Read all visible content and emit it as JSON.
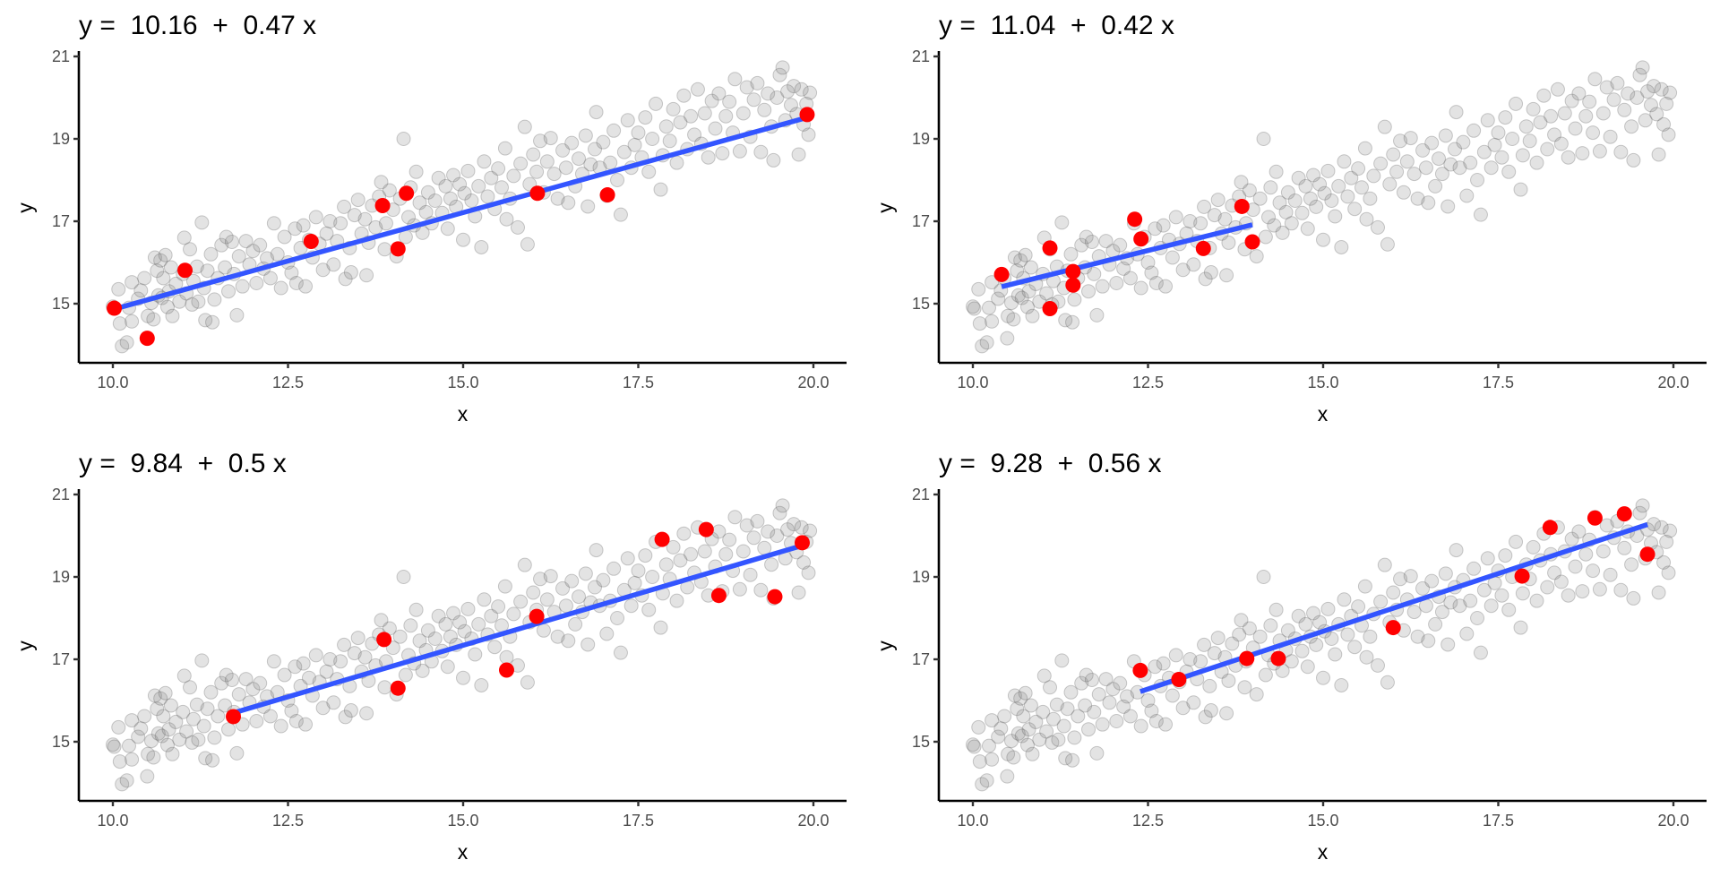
{
  "chart_data": {
    "type": "scatter",
    "layout": "2x2 grid of facets",
    "xlabel": "x",
    "ylabel": "y",
    "xlim": [
      9.5,
      20.5
    ],
    "ylim": [
      13.7,
      21.1
    ],
    "x_ticks": [
      10.0,
      12.5,
      15.0,
      17.5,
      20.0
    ],
    "x_tick_labels": [
      "10.0",
      "12.5",
      "15.0",
      "17.5",
      "20.0"
    ],
    "y_ticks": [
      15,
      17,
      19,
      21
    ],
    "y_tick_labels": [
      "15",
      "17",
      "19",
      "21"
    ],
    "grid": false,
    "colors": {
      "background_points": "#808080",
      "highlight_points": "#ff0000",
      "fit_line": "#3355ff"
    },
    "background_points": [
      [
        10.0,
        14.93
      ],
      [
        10.02,
        14.88
      ],
      [
        10.08,
        15.35
      ],
      [
        10.1,
        14.52
      ],
      [
        10.13,
        13.97
      ],
      [
        10.2,
        14.06
      ],
      [
        10.23,
        14.9
      ],
      [
        10.27,
        14.57
      ],
      [
        10.27,
        15.52
      ],
      [
        10.36,
        15.12
      ],
      [
        10.4,
        15.32
      ],
      [
        10.45,
        15.62
      ],
      [
        10.49,
        14.16
      ],
      [
        10.5,
        14.7
      ],
      [
        10.55,
        15.02
      ],
      [
        10.58,
        14.62
      ],
      [
        10.6,
        16.12
      ],
      [
        10.63,
        15.8
      ],
      [
        10.65,
        15.2
      ],
      [
        10.68,
        16.05
      ],
      [
        10.7,
        15.14
      ],
      [
        10.72,
        15.62
      ],
      [
        10.75,
        16.18
      ],
      [
        10.78,
        14.92
      ],
      [
        10.8,
        15.3
      ],
      [
        10.83,
        15.88
      ],
      [
        10.85,
        14.7
      ],
      [
        10.9,
        15.48
      ],
      [
        10.95,
        15.05
      ],
      [
        11.0,
        15.72
      ],
      [
        11.02,
        16.6
      ],
      [
        11.05,
        15.25
      ],
      [
        11.1,
        16.32
      ],
      [
        11.13,
        14.98
      ],
      [
        11.15,
        15.55
      ],
      [
        11.2,
        15.9
      ],
      [
        11.22,
        15.05
      ],
      [
        11.27,
        16.97
      ],
      [
        11.3,
        15.38
      ],
      [
        11.32,
        14.6
      ],
      [
        11.35,
        15.8
      ],
      [
        11.4,
        16.2
      ],
      [
        11.42,
        14.55
      ],
      [
        11.45,
        15.1
      ],
      [
        11.5,
        15.62
      ],
      [
        11.55,
        16.42
      ],
      [
        11.6,
        15.88
      ],
      [
        11.62,
        16.62
      ],
      [
        11.65,
        15.3
      ],
      [
        11.7,
        16.5
      ],
      [
        11.73,
        15.72
      ],
      [
        11.77,
        14.72
      ],
      [
        11.8,
        16.15
      ],
      [
        11.85,
        15.42
      ],
      [
        11.9,
        16.52
      ],
      [
        11.95,
        15.95
      ],
      [
        12.0,
        16.28
      ],
      [
        12.05,
        15.5
      ],
      [
        12.1,
        16.42
      ],
      [
        12.15,
        15.85
      ],
      [
        12.2,
        16.1
      ],
      [
        12.25,
        15.62
      ],
      [
        12.3,
        16.95
      ],
      [
        12.35,
        16.2
      ],
      [
        12.4,
        15.38
      ],
      [
        12.45,
        16.62
      ],
      [
        12.5,
        16.0
      ],
      [
        12.55,
        15.75
      ],
      [
        12.6,
        16.82
      ],
      [
        12.62,
        15.5
      ],
      [
        12.68,
        16.35
      ],
      [
        12.72,
        16.9
      ],
      [
        12.75,
        15.42
      ],
      [
        12.8,
        16.55
      ],
      [
        12.85,
        16.12
      ],
      [
        12.9,
        17.1
      ],
      [
        12.95,
        16.45
      ],
      [
        13.0,
        15.82
      ],
      [
        13.05,
        16.7
      ],
      [
        13.1,
        17.0
      ],
      [
        13.15,
        15.95
      ],
      [
        13.2,
        16.52
      ],
      [
        13.25,
        16.95
      ],
      [
        13.3,
        17.35
      ],
      [
        13.32,
        15.6
      ],
      [
        13.38,
        16.35
      ],
      [
        13.4,
        15.76
      ],
      [
        13.45,
        17.15
      ],
      [
        13.5,
        17.52
      ],
      [
        13.55,
        16.7
      ],
      [
        13.6,
        17.05
      ],
      [
        13.62,
        15.69
      ],
      [
        13.65,
        16.48
      ],
      [
        13.7,
        17.38
      ],
      [
        13.75,
        16.85
      ],
      [
        13.8,
        17.6
      ],
      [
        13.83,
        17.95
      ],
      [
        13.88,
        16.32
      ],
      [
        13.9,
        16.95
      ],
      [
        13.95,
        17.75
      ],
      [
        14.0,
        17.28
      ],
      [
        14.05,
        16.15
      ],
      [
        14.1,
        17.55
      ],
      [
        14.15,
        19.0
      ],
      [
        14.18,
        16.62
      ],
      [
        14.22,
        17.1
      ],
      [
        14.25,
        17.82
      ],
      [
        14.3,
        16.9
      ],
      [
        14.33,
        18.2
      ],
      [
        14.38,
        17.45
      ],
      [
        14.42,
        16.72
      ],
      [
        14.47,
        17.22
      ],
      [
        14.5,
        17.7
      ],
      [
        14.55,
        16.95
      ],
      [
        14.6,
        17.5
      ],
      [
        14.65,
        18.05
      ],
      [
        14.7,
        17.2
      ],
      [
        14.75,
        17.85
      ],
      [
        14.78,
        16.82
      ],
      [
        14.82,
        17.55
      ],
      [
        14.86,
        18.12
      ],
      [
        14.9,
        17.35
      ],
      [
        14.95,
        17.9
      ],
      [
        15.0,
        16.55
      ],
      [
        15.02,
        17.68
      ],
      [
        15.07,
        18.22
      ],
      [
        15.12,
        17.5
      ],
      [
        15.17,
        17.12
      ],
      [
        15.22,
        17.85
      ],
      [
        15.26,
        16.37
      ],
      [
        15.3,
        18.45
      ],
      [
        15.35,
        17.6
      ],
      [
        15.4,
        18.05
      ],
      [
        15.45,
        17.3
      ],
      [
        15.5,
        18.28
      ],
      [
        15.55,
        17.82
      ],
      [
        15.6,
        18.77
      ],
      [
        15.62,
        17.05
      ],
      [
        15.67,
        17.55
      ],
      [
        15.72,
        18.1
      ],
      [
        15.78,
        16.85
      ],
      [
        15.82,
        18.4
      ],
      [
        15.88,
        19.29
      ],
      [
        15.92,
        16.44
      ],
      [
        15.95,
        17.9
      ],
      [
        16.0,
        18.62
      ],
      [
        16.05,
        18.2
      ],
      [
        16.1,
        18.95
      ],
      [
        16.15,
        17.7
      ],
      [
        16.2,
        18.45
      ],
      [
        16.25,
        19.02
      ],
      [
        16.3,
        18.15
      ],
      [
        16.35,
        17.55
      ],
      [
        16.42,
        18.72
      ],
      [
        16.47,
        18.3
      ],
      [
        16.5,
        17.45
      ],
      [
        16.55,
        18.9
      ],
      [
        16.6,
        17.85
      ],
      [
        16.65,
        18.52
      ],
      [
        16.7,
        18.15
      ],
      [
        16.75,
        19.08
      ],
      [
        16.78,
        17.36
      ],
      [
        16.82,
        18.38
      ],
      [
        16.88,
        18.75
      ],
      [
        16.9,
        19.65
      ],
      [
        16.95,
        18.3
      ],
      [
        17.0,
        18.92
      ],
      [
        17.05,
        17.62
      ],
      [
        17.1,
        18.42
      ],
      [
        17.15,
        19.2
      ],
      [
        17.2,
        18.0
      ],
      [
        17.25,
        17.16
      ],
      [
        17.3,
        18.68
      ],
      [
        17.35,
        19.45
      ],
      [
        17.4,
        18.3
      ],
      [
        17.45,
        18.85
      ],
      [
        17.5,
        19.15
      ],
      [
        17.55,
        18.55
      ],
      [
        17.6,
        19.52
      ],
      [
        17.65,
        18.2
      ],
      [
        17.7,
        19.0
      ],
      [
        17.75,
        19.85
      ],
      [
        17.82,
        17.77
      ],
      [
        17.85,
        18.6
      ],
      [
        17.9,
        19.3
      ],
      [
        17.95,
        18.95
      ],
      [
        18.0,
        19.72
      ],
      [
        18.05,
        18.42
      ],
      [
        18.1,
        19.4
      ],
      [
        18.15,
        20.05
      ],
      [
        18.2,
        18.75
      ],
      [
        18.25,
        19.55
      ],
      [
        18.3,
        19.1
      ],
      [
        18.35,
        20.2
      ],
      [
        18.4,
        18.88
      ],
      [
        18.45,
        19.62
      ],
      [
        18.5,
        18.55
      ],
      [
        18.55,
        19.92
      ],
      [
        18.6,
        19.25
      ],
      [
        18.65,
        20.1
      ],
      [
        18.7,
        18.65
      ],
      [
        18.75,
        19.55
      ],
      [
        18.8,
        19.9
      ],
      [
        18.85,
        19.15
      ],
      [
        18.88,
        20.45
      ],
      [
        18.95,
        18.7
      ],
      [
        19.0,
        19.62
      ],
      [
        19.05,
        20.25
      ],
      [
        19.1,
        19.05
      ],
      [
        19.15,
        19.95
      ],
      [
        19.2,
        20.35
      ],
      [
        19.25,
        18.68
      ],
      [
        19.3,
        19.7
      ],
      [
        19.35,
        20.1
      ],
      [
        19.4,
        19.3
      ],
      [
        19.43,
        18.48
      ],
      [
        19.48,
        20.0
      ],
      [
        19.52,
        20.55
      ],
      [
        19.56,
        20.73
      ],
      [
        19.6,
        19.45
      ],
      [
        19.63,
        20.15
      ],
      [
        19.68,
        19.82
      ],
      [
        19.72,
        20.28
      ],
      [
        19.76,
        19.6
      ],
      [
        19.79,
        18.62
      ],
      [
        19.83,
        20.2
      ],
      [
        19.86,
        19.35
      ],
      [
        19.9,
        19.85
      ],
      [
        19.93,
        19.1
      ],
      [
        19.95,
        20.12
      ]
    ],
    "panels": [
      {
        "title": "y =  10.16  +  0.47 x",
        "highlight_points": [
          [
            10.02,
            14.89
          ],
          [
            10.49,
            14.16
          ],
          [
            11.03,
            15.81
          ],
          [
            12.83,
            16.51
          ],
          [
            13.85,
            17.38
          ],
          [
            14.07,
            16.33
          ],
          [
            14.19,
            17.68
          ],
          [
            16.06,
            17.68
          ],
          [
            17.06,
            17.64
          ],
          [
            19.91,
            19.59
          ]
        ],
        "fit": {
          "intercept": 10.16,
          "slope": 0.47,
          "x_range": [
            10.02,
            19.91
          ]
        }
      },
      {
        "title": "y =  11.04  +  0.42 x",
        "highlight_points": [
          [
            10.41,
            15.71
          ],
          [
            11.1,
            16.35
          ],
          [
            11.1,
            14.88
          ],
          [
            11.43,
            15.78
          ],
          [
            11.43,
            15.45
          ],
          [
            12.31,
            17.05
          ],
          [
            12.4,
            16.57
          ],
          [
            13.29,
            16.34
          ],
          [
            13.84,
            17.36
          ],
          [
            13.99,
            16.5
          ]
        ],
        "fit": {
          "intercept": 11.04,
          "slope": 0.42,
          "x_range": [
            10.41,
            13.99
          ]
        }
      },
      {
        "title": "y =  9.84  +  0.5 x",
        "highlight_points": [
          [
            11.72,
            15.61
          ],
          [
            13.87,
            17.48
          ],
          [
            14.07,
            16.3
          ],
          [
            15.62,
            16.74
          ],
          [
            16.05,
            18.04
          ],
          [
            17.84,
            19.91
          ],
          [
            18.47,
            20.15
          ],
          [
            18.65,
            18.55
          ],
          [
            19.45,
            18.52
          ],
          [
            19.84,
            19.83
          ]
        ],
        "fit": {
          "intercept": 9.84,
          "slope": 0.5,
          "x_range": [
            11.72,
            19.84
          ]
        }
      },
      {
        "title": "y =  9.28  +  0.56 x",
        "highlight_points": [
          [
            12.39,
            16.73
          ],
          [
            12.94,
            16.51
          ],
          [
            13.91,
            17.02
          ],
          [
            14.36,
            17.02
          ],
          [
            16.0,
            17.77
          ],
          [
            17.84,
            19.02
          ],
          [
            18.24,
            20.2
          ],
          [
            18.88,
            20.43
          ],
          [
            19.3,
            20.53
          ],
          [
            19.63,
            19.55
          ]
        ],
        "fit": {
          "intercept": 9.28,
          "slope": 0.56,
          "x_range": [
            12.39,
            19.63
          ]
        }
      }
    ]
  }
}
